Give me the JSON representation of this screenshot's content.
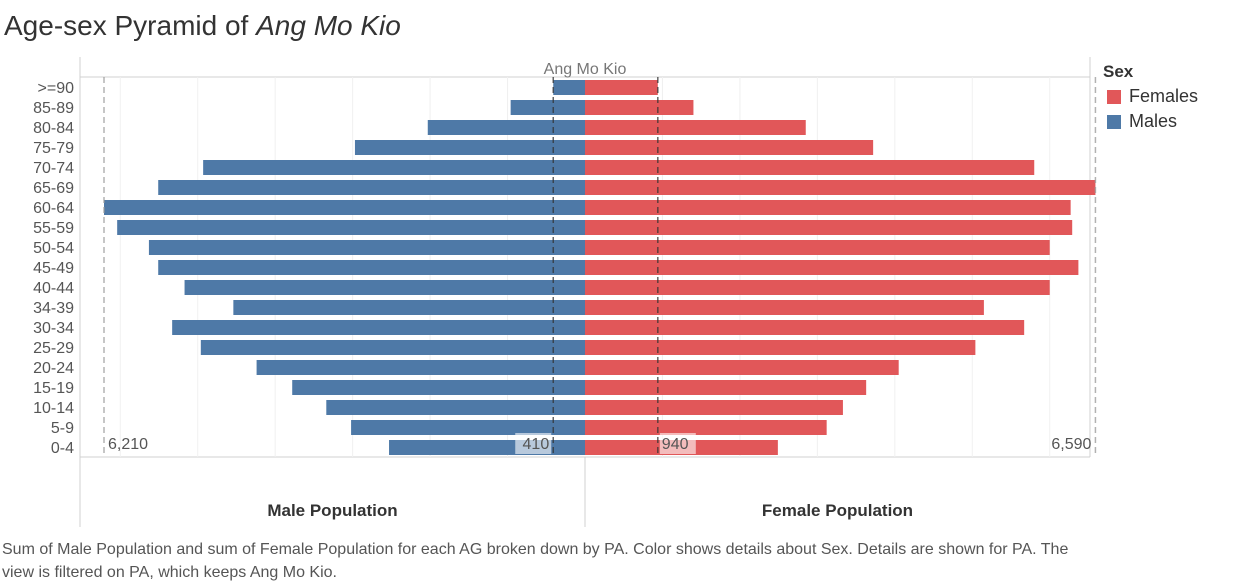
{
  "title_prefix": "Age-sex Pyramid of ",
  "title_area": "Ang Mo Kio",
  "header_label": "Ang Mo Kio",
  "colors": {
    "females": "#e15759",
    "males": "#4e79a7"
  },
  "legend": {
    "title": "Sex",
    "items": [
      {
        "label": "Females",
        "color": "#e15759"
      },
      {
        "label": "Males",
        "color": "#4e79a7"
      }
    ]
  },
  "chart_data": {
    "type": "bar",
    "subtype": "population-pyramid",
    "categories": [
      ">=90",
      "85-89",
      "80-84",
      "75-79",
      "70-74",
      "65-69",
      "60-64",
      "55-59",
      "50-54",
      "45-49",
      "40-44",
      "34-39",
      "30-34",
      "25-29",
      "20-24",
      "15-19",
      "10-14",
      "5-9",
      "0-4"
    ],
    "series": [
      {
        "name": "Males",
        "values": [
          410,
          960,
          2030,
          2970,
          4930,
          5510,
          6210,
          6040,
          5630,
          5510,
          5170,
          4540,
          5330,
          4960,
          4240,
          3780,
          3340,
          3020,
          2530
        ]
      },
      {
        "name": "Females",
        "values": [
          940,
          1400,
          2850,
          3720,
          5800,
          6590,
          6270,
          6290,
          6000,
          6370,
          6000,
          5150,
          5670,
          5040,
          4050,
          3630,
          3330,
          3120,
          2490
        ]
      }
    ],
    "male_axis_title": "Male Population",
    "female_axis_title": "Female Population",
    "reference_labels": {
      "male_max": "6,210",
      "male_min": "410",
      "female_min": "940",
      "female_max": "6,590"
    },
    "x_range": [
      0,
      6590
    ],
    "legend_position": "right"
  },
  "caption": "Sum of Male Population and sum of Female Population for each AG broken down by PA.  Color shows details about Sex.  Details are shown for PA. The view is filtered on PA, which keeps Ang Mo Kio."
}
